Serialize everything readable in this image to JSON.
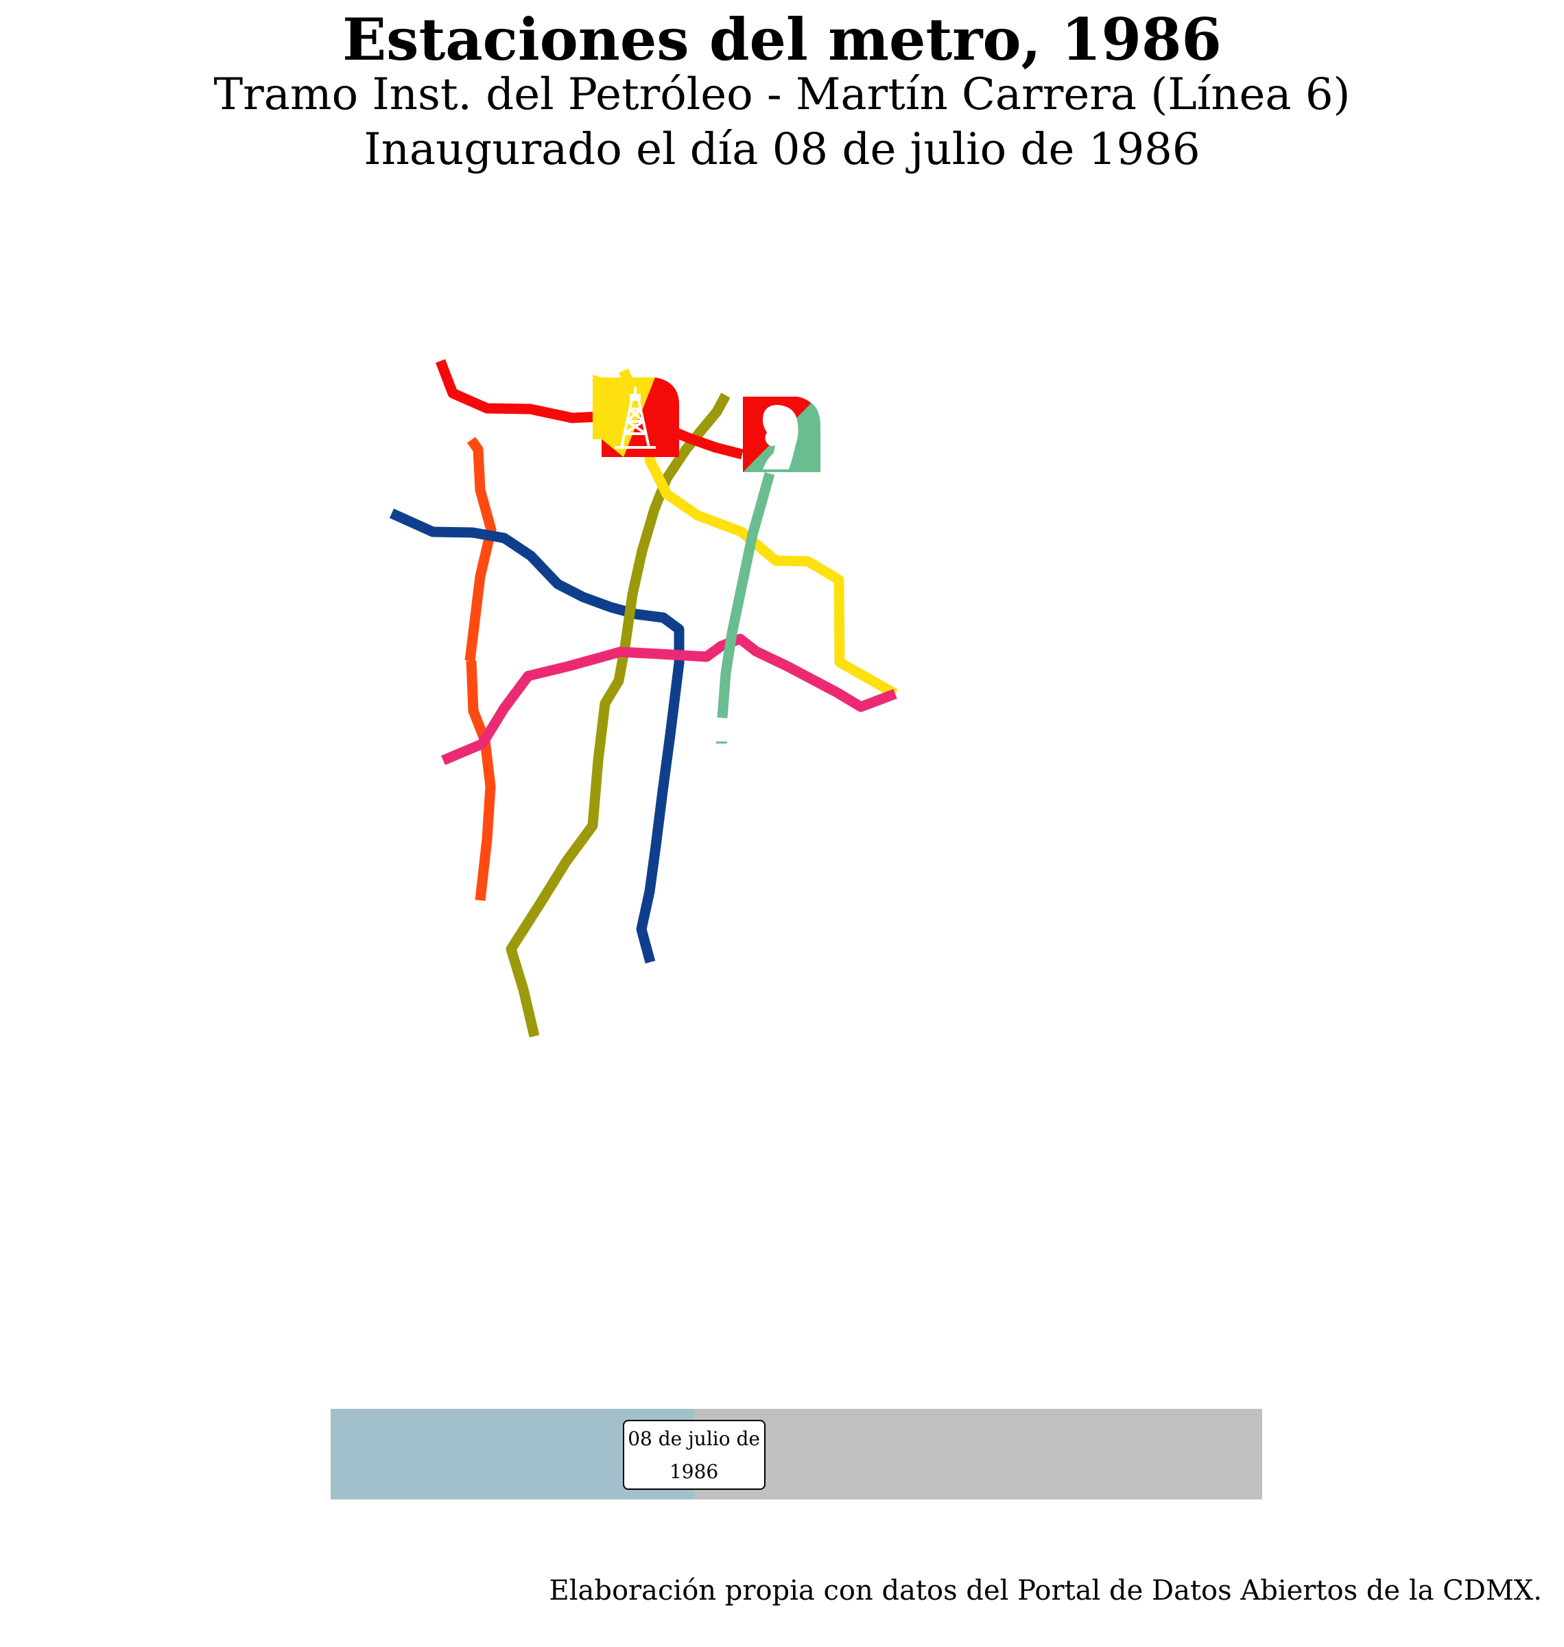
{
  "title": "Estaciones del metro, 1986",
  "subtitle": "Tramo Inst. del Petróleo - Martín Carrera (Línea 6)",
  "subtitle2": "Inaugurado el día 08 de julio de 1986",
  "map": {
    "lines": [
      {
        "id": "red",
        "color": "#f50a0a"
      },
      {
        "id": "orange",
        "color": "#ff4a12"
      },
      {
        "id": "blue",
        "color": "#0f3f8c"
      },
      {
        "id": "olive",
        "color": "#9c9a0b"
      },
      {
        "id": "yellow",
        "color": "#ffe00f"
      },
      {
        "id": "pink",
        "color": "#ec2a74"
      },
      {
        "id": "green",
        "color": "#69bd8f"
      }
    ],
    "stations": [
      {
        "id": "instituto-del-petroleo",
        "icon": "oil-derrick-icon",
        "colors": [
          "#ffe00f",
          "#f50a0a"
        ]
      },
      {
        "id": "martin-carrera",
        "icon": "portrait-icon",
        "colors": [
          "#f50a0a",
          "#69bd8f"
        ]
      }
    ]
  },
  "timeline": {
    "label_line1": "08 de julio de",
    "label_line2": "1986",
    "progress": 0.39,
    "fill_color": "#a1c0cc",
    "track_color": "#c0c0c0"
  },
  "caption": "Elaboración propia con datos del Portal de Datos Abiertos de la CDMX."
}
